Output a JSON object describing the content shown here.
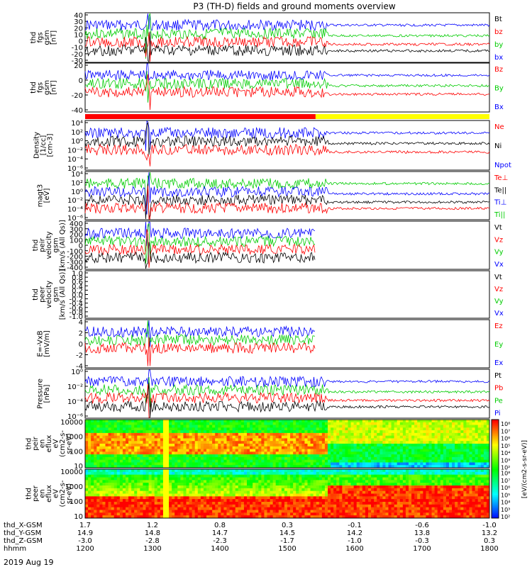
{
  "title": "P3 (TH-D) fields and ground moments overview",
  "date_label": "2019 Aug 19",
  "chart_data": {
    "type": "line",
    "x_range_hhmm": [
      "1200",
      "1800"
    ],
    "time_rows": [
      {
        "label": "thd_X-GSM",
        "values": [
          "1.7",
          "1.2",
          "0.8",
          "0.3",
          "-0.1",
          "-0.6",
          "-1.0"
        ]
      },
      {
        "label": "thd_Y-GSM",
        "values": [
          "14.9",
          "14.8",
          "14.7",
          "14.5",
          "14.2",
          "13.8",
          "13.2"
        ]
      },
      {
        "label": "thd_Z-GSM",
        "values": [
          "-3.0",
          "-2.8",
          "-2.3",
          "-1.7",
          "-1.0",
          "-0.3",
          "0.3"
        ]
      },
      {
        "label": "hhmm",
        "values": [
          "1200",
          "1300",
          "1400",
          "1500",
          "1600",
          "1700",
          "1800"
        ]
      }
    ],
    "panels": [
      {
        "id": "fgs",
        "ylabel": [
          "thd",
          "fgs",
          "gsm",
          "[nT]"
        ],
        "ticks": [
          "40",
          "30",
          "20",
          "10",
          "0",
          "-10",
          "-20",
          "-30"
        ],
        "legend": [
          {
            "name": "Bt",
            "color": "#000000"
          },
          {
            "name": "bz",
            "color": "#ff0000"
          },
          {
            "name": "by",
            "color": "#00cc00"
          },
          {
            "name": "bx",
            "color": "#0000ff"
          }
        ]
      },
      {
        "id": "fgs_dsl",
        "ylabel": [
          "thd",
          "fgs",
          "gsm",
          "[nT]"
        ],
        "ticks": [
          "20",
          "0",
          "-20",
          "-40"
        ],
        "legend": [
          {
            "name": "Bz",
            "color": "#ff0000"
          },
          {
            "name": "By",
            "color": "#00cc00"
          },
          {
            "name": "Bx",
            "color": "#0000ff"
          }
        ]
      },
      {
        "id": "density",
        "ylabel": [
          "Density",
          "[1/cc]",
          "[cm-3]"
        ],
        "ticks": [
          "10⁴",
          "10²",
          "10⁰",
          "10⁻²",
          "10⁻⁴",
          "10⁻⁶"
        ],
        "legend": [
          {
            "name": "Ne",
            "color": "#ff0000"
          },
          {
            "name": "Ni",
            "color": "#000000"
          },
          {
            "name": "Npot",
            "color": "#0000ff"
          }
        ]
      },
      {
        "id": "temp",
        "ylabel": [
          "magt3",
          "[eV]"
        ],
        "ticks": [
          "10⁴",
          "10²",
          "10⁰",
          "10⁻²",
          "10⁻⁴",
          "10⁻⁶"
        ],
        "legend": [
          {
            "name": "Te⊥",
            "color": "#ff0000"
          },
          {
            "name": "Te||",
            "color": "#000000"
          },
          {
            "name": "Ti⊥",
            "color": "#0000ff"
          },
          {
            "name": "Ti||",
            "color": "#00cc00"
          }
        ]
      },
      {
        "id": "peir_vel",
        "ylabel": [
          "thd",
          "peir",
          "velocity",
          "gsm",
          "[km/s (All Qs)]"
        ],
        "ticks": [
          "400",
          "300",
          "200",
          "100",
          "0",
          "-100",
          "-200",
          "-300",
          "-400"
        ],
        "legend": [
          {
            "name": "Vt",
            "color": "#000000"
          },
          {
            "name": "Vz",
            "color": "#ff0000"
          },
          {
            "name": "Vy",
            "color": "#00cc00"
          },
          {
            "name": "Vx",
            "color": "#0000ff"
          }
        ]
      },
      {
        "id": "peer_vel",
        "ylabel": [
          "thd",
          "peer",
          "velocity",
          "gsm",
          "[km/s (All Qs)]"
        ],
        "ticks": [
          "1.0",
          "0.8",
          "0.6",
          "0.4",
          "0.2",
          "0.0",
          "-0.2",
          "-0.4",
          "-0.6",
          "-0.8",
          "-1.0"
        ],
        "legend": [
          {
            "name": "Vt",
            "color": "#000000"
          },
          {
            "name": "Vz",
            "color": "#ff0000"
          },
          {
            "name": "Vy",
            "color": "#00cc00"
          },
          {
            "name": "Vx",
            "color": "#0000ff"
          }
        ]
      },
      {
        "id": "efield",
        "ylabel": [
          "E=-VxB",
          "[mV/m]"
        ],
        "ticks": [
          "4",
          "2",
          "0",
          "-2",
          "-4"
        ],
        "legend": [
          {
            "name": "Ez",
            "color": "#ff0000"
          },
          {
            "name": "Ey",
            "color": "#00cc00"
          },
          {
            "name": "Ex",
            "color": "#0000ff"
          }
        ]
      },
      {
        "id": "pressure",
        "ylabel": [
          "Pressure",
          "[nPa]"
        ],
        "ticks": [
          "10⁰",
          "10⁻²",
          "10⁻⁴",
          "10⁻⁶"
        ],
        "legend": [
          {
            "name": "Pt",
            "color": "#000000"
          },
          {
            "name": "Pb",
            "color": "#ff0000"
          },
          {
            "name": "Pe",
            "color": "#00cc00"
          },
          {
            "name": "Pi",
            "color": "#0000ff"
          }
        ]
      },
      {
        "id": "peir_spec",
        "ylabel": [
          "thd",
          "peir",
          "en",
          "eflux",
          "eV",
          "(cm2-s-",
          "sr-eV)"
        ],
        "ticks": [
          "10000",
          "1000",
          "100",
          "10"
        ],
        "legend": []
      },
      {
        "id": "peer_spec",
        "ylabel": [
          "thd",
          "peer",
          "en",
          "eflux",
          "eV",
          "(cm2-s-",
          "sr-eV)"
        ],
        "ticks": [
          "10000",
          "1000",
          "100",
          "10"
        ],
        "legend": []
      }
    ],
    "colorbar": {
      "ticks": [
        "10⁸",
        "10⁷",
        "10⁶",
        "10⁵",
        "10⁴",
        "10³",
        "10²"
      ],
      "ticks_lower": [
        "10⁸",
        "10⁷",
        "10⁶",
        "10⁵",
        "10⁴",
        "10³",
        "10²"
      ],
      "label": "[eV/(cm2-s-sr-eV)]"
    }
  }
}
